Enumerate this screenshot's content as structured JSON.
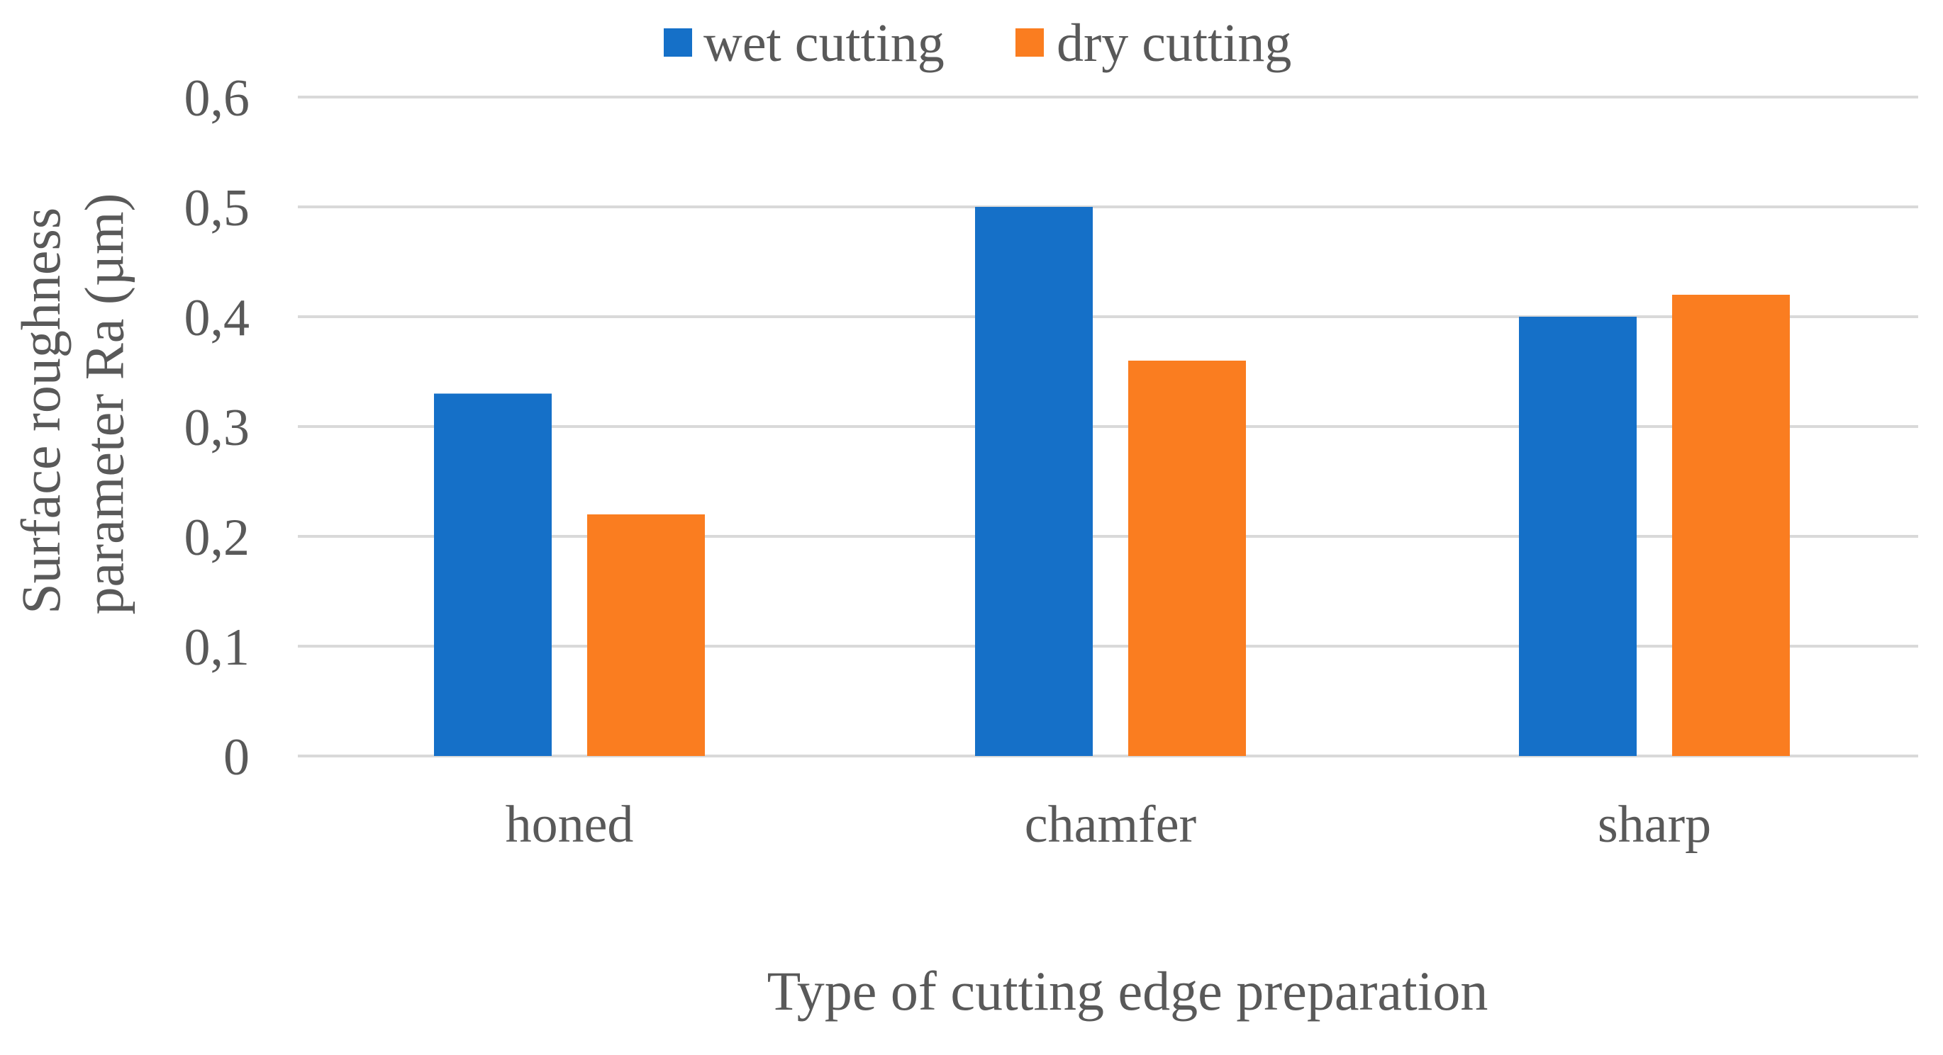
{
  "chart_data": {
    "type": "bar",
    "categories": [
      "honed",
      "chamfer",
      "sharp"
    ],
    "series": [
      {
        "name": "wet cutting",
        "color": "#1570C8",
        "values": [
          0.33,
          0.5,
          0.4
        ]
      },
      {
        "name": "dry cutting",
        "color": "#FA7D20",
        "values": [
          0.22,
          0.36,
          0.42
        ]
      }
    ],
    "xlabel": "Type of cutting edge preparation",
    "ylabel_lines": [
      "Surface roughness",
      "parameter Ra (µm)"
    ],
    "ylim": [
      0,
      0.6
    ],
    "yticks": [
      {
        "value": 0,
        "label": "0"
      },
      {
        "value": 0.1,
        "label": "0,1"
      },
      {
        "value": 0.2,
        "label": "0,2"
      },
      {
        "value": 0.3,
        "label": "0,3"
      },
      {
        "value": 0.4,
        "label": "0,4"
      },
      {
        "value": 0.5,
        "label": "0,5"
      },
      {
        "value": 0.6,
        "label": "0,6"
      }
    ],
    "grid": true,
    "legend_position": "top"
  }
}
